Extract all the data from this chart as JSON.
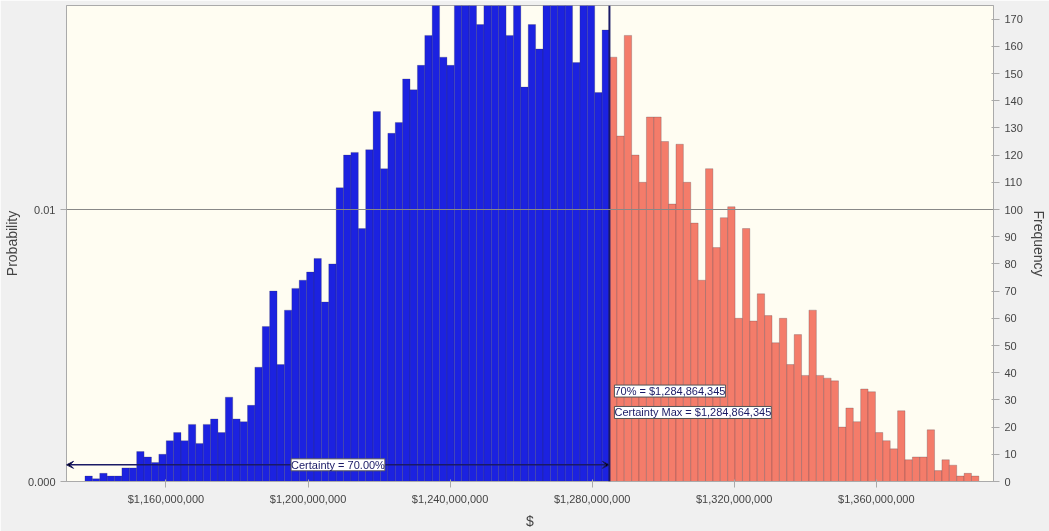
{
  "chart_data": {
    "type": "histogram",
    "xlabel": "$",
    "ylabel": "Probability",
    "y2label": "Frequency",
    "bins": [
      1137200000,
      1139280000,
      1141360000,
      1143440000,
      1145520000,
      1147600000,
      1149680000,
      1151760000,
      1153840000,
      1155920000,
      1158000000,
      1160080000,
      1162160000,
      1164240000,
      1166320000,
      1168400000,
      1170480000,
      1172560000,
      1174640000,
      1176720000,
      1178800000,
      1180880000,
      1182960000,
      1185040000,
      1187120000,
      1189200000,
      1191280000,
      1193360000,
      1195440000,
      1197520000,
      1199600000,
      1201680000,
      1203760000,
      1205840000,
      1207920000,
      1210000000,
      1212080000,
      1214160000,
      1216240000,
      1218320000,
      1220400000,
      1222480000,
      1224560000,
      1226640000,
      1228720000,
      1230800000,
      1232880000,
      1234960000,
      1237040000,
      1239120000,
      1241200000,
      1243280000,
      1245360000,
      1247440000,
      1249520000,
      1251600000,
      1253680000,
      1255760000,
      1257840000,
      1259920000,
      1262000000,
      1264080000,
      1266160000,
      1268240000,
      1270320000,
      1272400000,
      1274480000,
      1276560000,
      1278640000,
      1280720000,
      1282800000,
      1284880000,
      1286960000,
      1289040000,
      1291120000,
      1293200000,
      1295280000,
      1297360000,
      1299440000,
      1301520000,
      1303600000,
      1305680000,
      1307760000,
      1309840000,
      1311920000,
      1314000000,
      1316080000,
      1318160000,
      1320240000,
      1322320000,
      1324400000,
      1326480000,
      1328560000,
      1330640000,
      1332720000,
      1334800000,
      1336880000,
      1338960000,
      1341040000,
      1343120000,
      1345200000,
      1347280000,
      1349360000,
      1351440000,
      1353520000,
      1355600000,
      1357680000,
      1359760000,
      1361840000,
      1363920000,
      1366000000,
      1368080000,
      1370160000,
      1372240000,
      1374320000,
      1376400000,
      1378480000,
      1380560000,
      1382640000,
      1384720000,
      1386800000,
      1388880000
    ],
    "series": [
      {
        "axis": "y2",
        "color": "#1c22e0",
        "values": [
          2,
          1,
          3,
          2,
          2,
          5,
          5,
          11,
          9,
          7,
          10,
          15,
          18,
          15,
          21,
          14,
          21,
          23,
          18,
          31,
          23,
          22,
          28,
          42,
          57,
          70,
          43,
          63,
          71,
          74,
          77,
          82,
          66,
          80,
          108,
          120,
          121,
          93,
          122,
          136,
          115,
          128,
          132,
          148,
          144,
          153,
          164,
          175,
          156,
          153,
          175,
          175,
          175,
          168,
          175,
          175,
          175,
          164,
          175,
          145,
          168,
          159,
          175,
          175,
          175,
          175,
          154,
          175,
          175,
          143,
          166,
          null,
          null,
          null,
          null,
          null,
          null,
          null,
          null,
          null,
          null,
          null,
          null,
          null,
          null,
          null,
          null,
          null,
          null,
          null,
          null,
          null,
          null,
          null,
          null,
          null,
          null,
          null,
          null,
          null,
          null,
          null,
          null,
          null,
          null,
          null,
          null,
          null,
          null,
          null,
          null,
          null,
          null,
          null,
          null,
          null,
          null,
          null,
          null,
          null,
          null
        ]
      },
      {
        "axis": "y2",
        "color": "#f47c6a",
        "values": [
          null,
          null,
          null,
          null,
          null,
          null,
          null,
          null,
          null,
          null,
          null,
          null,
          null,
          null,
          null,
          null,
          null,
          null,
          null,
          null,
          null,
          null,
          null,
          null,
          null,
          null,
          null,
          null,
          null,
          null,
          null,
          null,
          null,
          null,
          null,
          null,
          null,
          null,
          null,
          null,
          null,
          null,
          null,
          null,
          null,
          null,
          null,
          null,
          null,
          null,
          null,
          null,
          null,
          null,
          null,
          null,
          null,
          null,
          null,
          null,
          null,
          null,
          null,
          null,
          null,
          null,
          null,
          null,
          null,
          null,
          null,
          156,
          127,
          164,
          120,
          110,
          134,
          134,
          125,
          102,
          124,
          110,
          95,
          74,
          115,
          86,
          97,
          101,
          60,
          93,
          59,
          69,
          61,
          51,
          60,
          43,
          54,
          39,
          63,
          39,
          38,
          37,
          20,
          27,
          22,
          34,
          33,
          18,
          15,
          12,
          26,
          8,
          9,
          9,
          19,
          4,
          8,
          6,
          2,
          3,
          2
        ]
      }
    ],
    "xlim": [
      1132000000,
      1393000000
    ],
    "xticks": [
      {
        "value": 1160000000,
        "label": "$1,160,000,000"
      },
      {
        "value": 1200000000,
        "label": "$1,200,000,000"
      },
      {
        "value": 1240000000,
        "label": "$1,240,000,000"
      },
      {
        "value": 1280000000,
        "label": "$1,280,000,000"
      },
      {
        "value": 1320000000,
        "label": "$1,320,000,000"
      },
      {
        "value": 1360000000,
        "label": "$1,360,000,000"
      }
    ],
    "ylim": [
      0,
      0.0175
    ],
    "yticks": [
      {
        "value": 0,
        "label": "0.000"
      },
      0.01
    ],
    "y2lim": [
      0,
      175
    ],
    "y2ticks": [
      0,
      10,
      20,
      30,
      40,
      50,
      60,
      70,
      80,
      90,
      100,
      110,
      120,
      130,
      140,
      150,
      160,
      170
    ],
    "ref_lines": [
      {
        "axis": "x",
        "value": 1284864345,
        "color": "#1a1a66",
        "label": "70% = $1,284,864,345"
      },
      {
        "axis": "y",
        "value": 0.01,
        "color": "#888888"
      }
    ],
    "annotations": [
      "Certainty Max = $1,284,864,345",
      "Certainty = 70.00%"
    ]
  }
}
